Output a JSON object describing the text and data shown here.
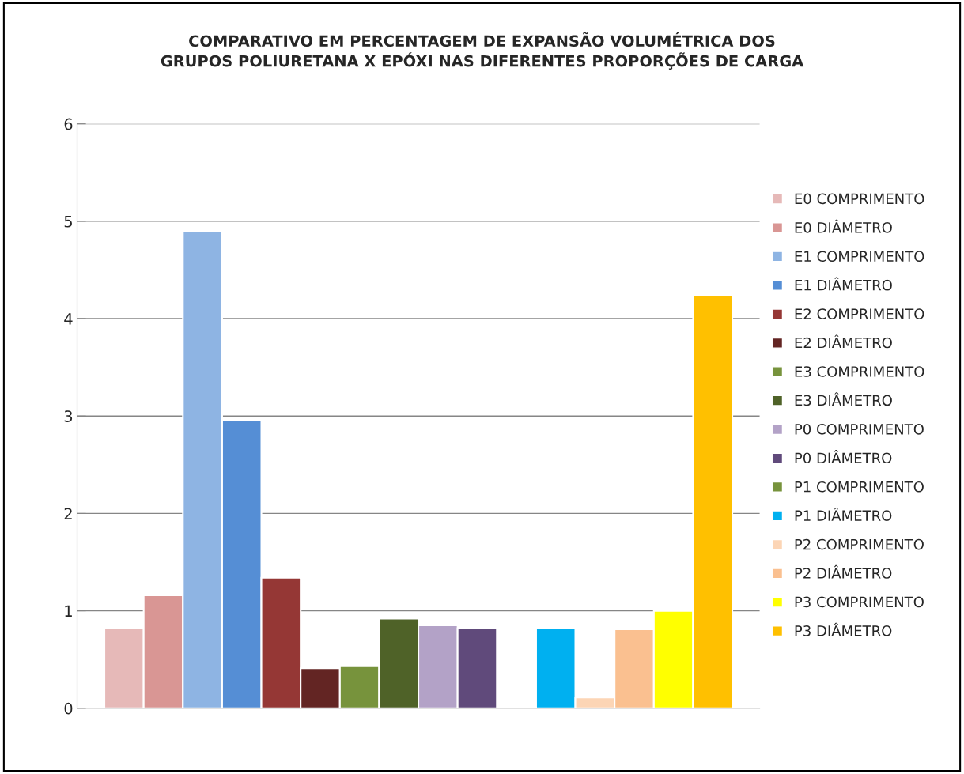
{
  "chart_data": {
    "type": "bar",
    "title": "COMPARATIVO EM PERCENTAGEM DE EXPANSÃO VOLUMÉTRICA DOS\nGRUPOS POLIURETANA X EPÓXI NAS DIFERENTES PROPORÇÕES DE CARGA",
    "categories": [
      null
    ],
    "series": [
      {
        "name": "E0 COMPRIMENTO",
        "color": "#e6b9b8",
        "values": [
          0.82
        ]
      },
      {
        "name": "E0 DIÂMETRO",
        "color": "#d99694",
        "values": [
          1.16
        ]
      },
      {
        "name": "E1 COMPRIMENTO",
        "color": "#8eb4e3",
        "values": [
          4.9
        ]
      },
      {
        "name": "E1 DIÂMETRO",
        "color": "#558ed5",
        "values": [
          2.96
        ]
      },
      {
        "name": "E2 COMPRIMENTO",
        "color": "#953735",
        "values": [
          1.34
        ]
      },
      {
        "name": "E2 DIÂMETRO",
        "color": "#632523",
        "values": [
          0.41
        ]
      },
      {
        "name": "E3 COMPRIMENTO",
        "color": "#77933c",
        "values": [
          0.43
        ]
      },
      {
        "name": "E3 DIÂMETRO",
        "color": "#4f6228",
        "values": [
          0.92
        ]
      },
      {
        "name": "P0 COMPRIMENTO",
        "color": "#b3a2c7",
        "values": [
          0.85
        ]
      },
      {
        "name": "P0 DIÂMETRO",
        "color": "#604a7b",
        "values": [
          0.82
        ]
      },
      {
        "name": "P1 COMPRIMENTO",
        "color": "#77933c",
        "values": [
          null
        ]
      },
      {
        "name": "P1 DIÂMETRO",
        "color": "#00b0f0",
        "values": [
          0.82
        ]
      },
      {
        "name": "P2 COMPRIMENTO",
        "color": "#fcd5b5",
        "values": [
          0.11
        ]
      },
      {
        "name": "P2 DIÂMETRO",
        "color": "#fac090",
        "values": [
          0.81
        ]
      },
      {
        "name": "P3 COMPRIMENTO",
        "color": "#ffff00",
        "values": [
          1.0
        ]
      },
      {
        "name": "P3 DIÂMETRO",
        "color": "#ffc000",
        "values": [
          4.24
        ]
      }
    ],
    "ylim": [
      0,
      6
    ],
    "yticks": [
      0,
      1,
      2,
      3,
      4,
      5,
      6
    ],
    "grid": "y",
    "legend": "right"
  }
}
